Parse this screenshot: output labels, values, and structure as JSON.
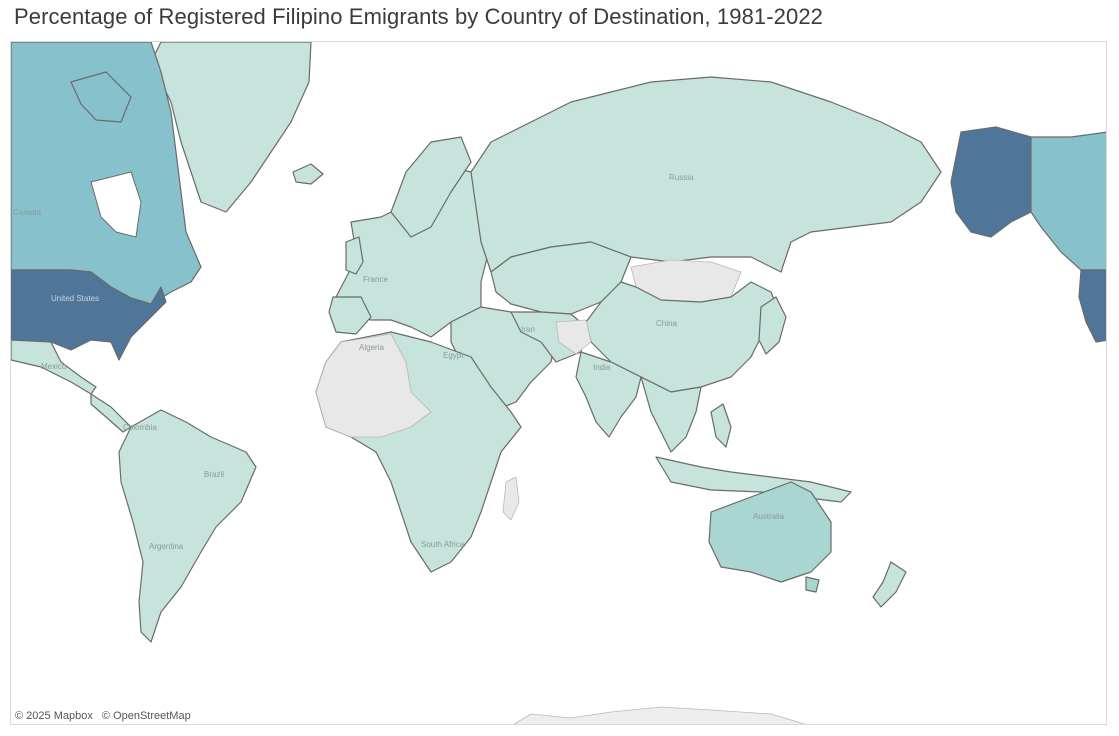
{
  "title": "Percentage of Registered Filipino Emigrants by Country of Destination, 1981-2022",
  "map": {
    "colors": {
      "low": "#c6e3dc",
      "medium_low": "#a9d6d3",
      "medium": "#86c1cc",
      "high": "#4f7599",
      "no_data": "#e8e8e8"
    },
    "labels": {
      "canada": "Canada",
      "united_states": "United States",
      "algeria": "Algeria",
      "egypt": "Egypt",
      "iran": "Iran",
      "india": "India",
      "china": "China",
      "russia": "Russia",
      "brazil": "Brazil",
      "argentina": "Argentina",
      "australia": "Australia",
      "colombia": "Colombia",
      "mexico": "Mexico",
      "south_africa": "South Africa",
      "france": "France"
    }
  },
  "attribution": {
    "mapbox": "© 2025 Mapbox",
    "osm": "© OpenStreetMap"
  }
}
